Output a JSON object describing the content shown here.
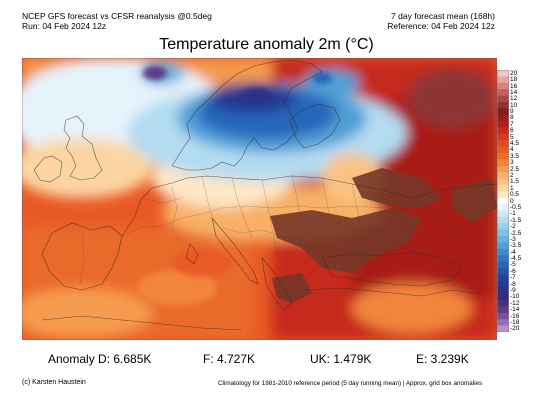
{
  "header": {
    "left": [
      "NCEP GFS forecast vs CFSR reanalysis @0.5deg",
      "Run: 04 Feb 2024 12z"
    ],
    "right": [
      "7 day forecast mean (168h)",
      "Reference: 04 Feb 2024 12z"
    ]
  },
  "title": "Temperature anomaly 2m (°C)",
  "colorbar": {
    "ticks": [
      "20",
      "18",
      "16",
      "14",
      "12",
      "10",
      "9",
      "8",
      "7",
      "6",
      "5",
      "4.5",
      "4",
      "3.5",
      "3",
      "2.5",
      "2",
      "1.5",
      "1",
      "0.5",
      "0",
      "-0.5",
      "-1",
      "-1.5",
      "-2",
      "-2.5",
      "-3",
      "-3.5",
      "-4",
      "-4.5",
      "-5",
      "-6",
      "-7",
      "-8",
      "-9",
      "-10",
      "-12",
      "-14",
      "-16",
      "-18",
      "-20"
    ],
    "colors": [
      "#f2c6c6",
      "#e9a2a2",
      "#d98080",
      "#c45f5f",
      "#a84848",
      "#8d3535",
      "#7a1f1f",
      "#9a1b1b",
      "#b51d1d",
      "#cc2a1d",
      "#d83a1f",
      "#e04a22",
      "#e85a25",
      "#ef6e2a",
      "#f3843a",
      "#f69b4e",
      "#f8b066",
      "#fac383",
      "#fbd6a3",
      "#fde7c6",
      "#ffffff",
      "#e6f3fb",
      "#cde7f6",
      "#b3dbf1",
      "#99cdeb",
      "#7fbfe4",
      "#66b0de",
      "#4f9fd6",
      "#3c8cce",
      "#2f78c4",
      "#2766b9",
      "#2156ac",
      "#1f479f",
      "#233b93",
      "#2b3389",
      "#352c80",
      "#47317f",
      "#5c3b86",
      "#7a4f9c",
      "#9a6bb6",
      "#bb90d0"
    ]
  },
  "stats": {
    "germany": "Anomaly D: 6.685K",
    "france": "F: 4.727K",
    "uk": "UK: 1.479K",
    "spain": "E: 3.239K"
  },
  "footer": {
    "credit": "(c) Karsten Haustein",
    "climatology": "Climatology for 1981-2010 reference period (5 day running mean) | Approx. grid box anomalies"
  }
}
